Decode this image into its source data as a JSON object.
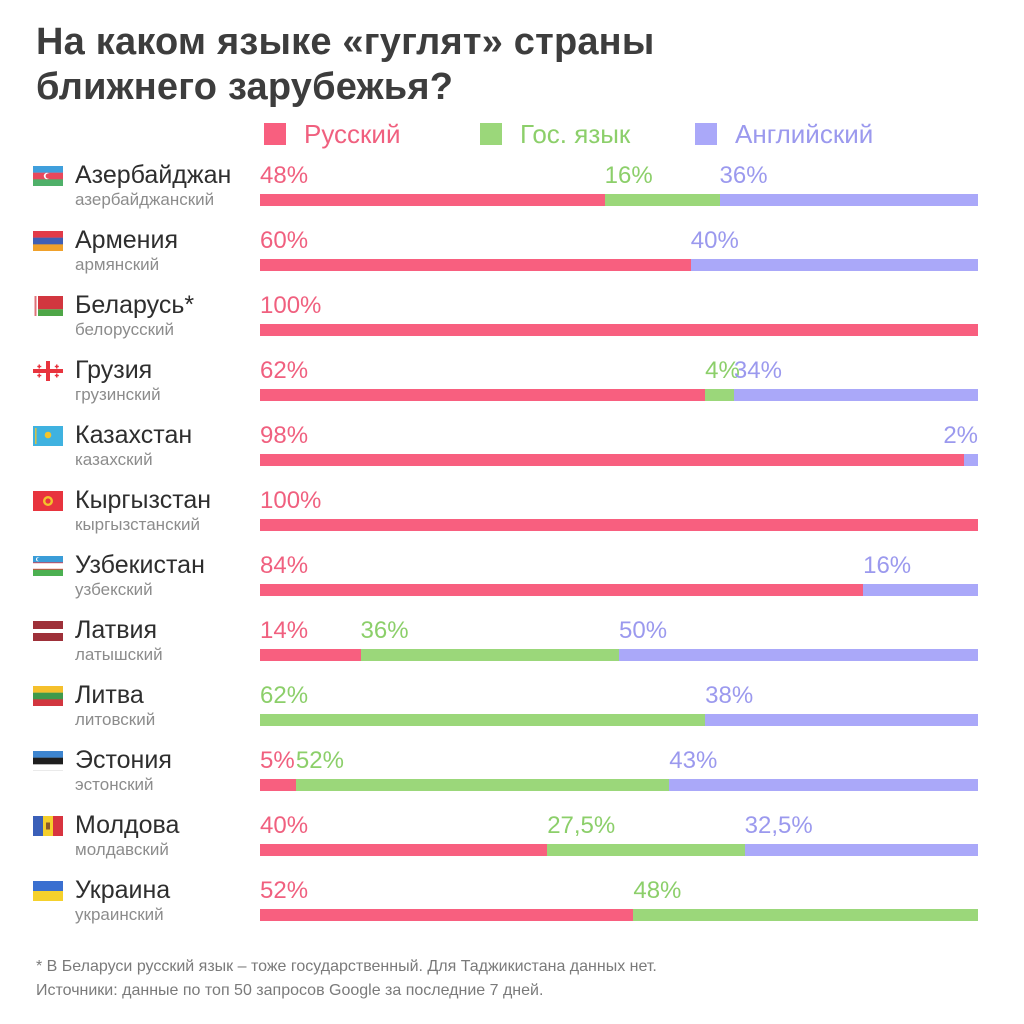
{
  "title": {
    "line1": "На каком языке «гуглят» страны",
    "line2": "ближнего зарубежья?"
  },
  "colors": {
    "russian": "#f85f7f",
    "state": "#9bd77a",
    "english": "#aaa8f9",
    "russian_text": "#f0607f",
    "state_text": "#8ccf6a",
    "english_text": "#9b99ee"
  },
  "legend": [
    {
      "label": "Русский",
      "key": "russian"
    },
    {
      "label": "Гос. язык",
      "key": "state"
    },
    {
      "label": "Английский",
      "key": "english"
    }
  ],
  "chart_data": {
    "type": "bar",
    "orientation": "horizontal",
    "stacked": true,
    "unit": "%",
    "series": [
      {
        "name": "Русский",
        "key": "russian"
      },
      {
        "name": "Гос. язык",
        "key": "state"
      },
      {
        "name": "Английский",
        "key": "english"
      }
    ],
    "rows": [
      {
        "country": "Азербайджан",
        "language": "азербайджанский",
        "flag": "az-flag-icon",
        "values": {
          "russian": 48,
          "state": 16,
          "english": 36
        },
        "labels": {
          "russian": "48%",
          "state": "16%",
          "english": "36%"
        }
      },
      {
        "country": "Армения",
        "language": "армянский",
        "flag": "am-flag-icon",
        "values": {
          "russian": 60,
          "state": 0,
          "english": 40
        },
        "labels": {
          "russian": "60%",
          "english": "40%"
        }
      },
      {
        "country": "Беларусь*",
        "language": "белорусский",
        "flag": "by-flag-icon",
        "values": {
          "russian": 100,
          "state": 0,
          "english": 0
        },
        "labels": {
          "russian": "100%"
        }
      },
      {
        "country": "Грузия",
        "language": "грузинский",
        "flag": "ge-flag-icon",
        "values": {
          "russian": 62,
          "state": 4,
          "english": 34
        },
        "labels": {
          "russian": "62%",
          "state": "4%",
          "english": "34%"
        }
      },
      {
        "country": "Казахстан",
        "language": "казахский",
        "flag": "kz-flag-icon",
        "values": {
          "russian": 98,
          "state": 0,
          "english": 2
        },
        "labels": {
          "russian": "98%",
          "english": "2%"
        }
      },
      {
        "country": "Кыргызстан",
        "language": "кыргызстанский",
        "flag": "kg-flag-icon",
        "values": {
          "russian": 100,
          "state": 0,
          "english": 0
        },
        "labels": {
          "russian": "100%"
        }
      },
      {
        "country": "Узбекистан",
        "language": "узбекский",
        "flag": "uz-flag-icon",
        "values": {
          "russian": 84,
          "state": 0,
          "english": 16
        },
        "labels": {
          "russian": "84%",
          "english": "16%"
        }
      },
      {
        "country": "Латвия",
        "language": "латышский",
        "flag": "lv-flag-icon",
        "values": {
          "russian": 14,
          "state": 36,
          "english": 50
        },
        "labels": {
          "russian": "14%",
          "state": "36%",
          "english": "50%"
        }
      },
      {
        "country": "Литва",
        "language": "литовский",
        "flag": "lt-flag-icon",
        "values": {
          "russian": 0,
          "state": 62,
          "english": 38
        },
        "labels": {
          "state": "62%",
          "english": "38%"
        }
      },
      {
        "country": "Эстония",
        "language": "эстонский",
        "flag": "ee-flag-icon",
        "values": {
          "russian": 5,
          "state": 52,
          "english": 43
        },
        "labels": {
          "russian": "5%",
          "state": "52%",
          "english": "43%"
        }
      },
      {
        "country": "Молдова",
        "language": "молдавский",
        "flag": "md-flag-icon",
        "values": {
          "russian": 40,
          "state": 27.5,
          "english": 32.5
        },
        "labels": {
          "russian": "40%",
          "state": "27,5%",
          "english": "32,5%"
        }
      },
      {
        "country": "Украина",
        "language": "украинский",
        "flag": "ua-flag-icon",
        "values": {
          "russian": 52,
          "state": 48,
          "english": 0
        },
        "labels": {
          "russian": "52%",
          "state": "48%"
        }
      }
    ]
  },
  "footnote": {
    "line1": "* В Беларуси русский язык – тоже государственный. Для Таджикистана данных нет.",
    "line2": "Источники: данные по топ 50 запросов Google за последние 7 дней."
  }
}
